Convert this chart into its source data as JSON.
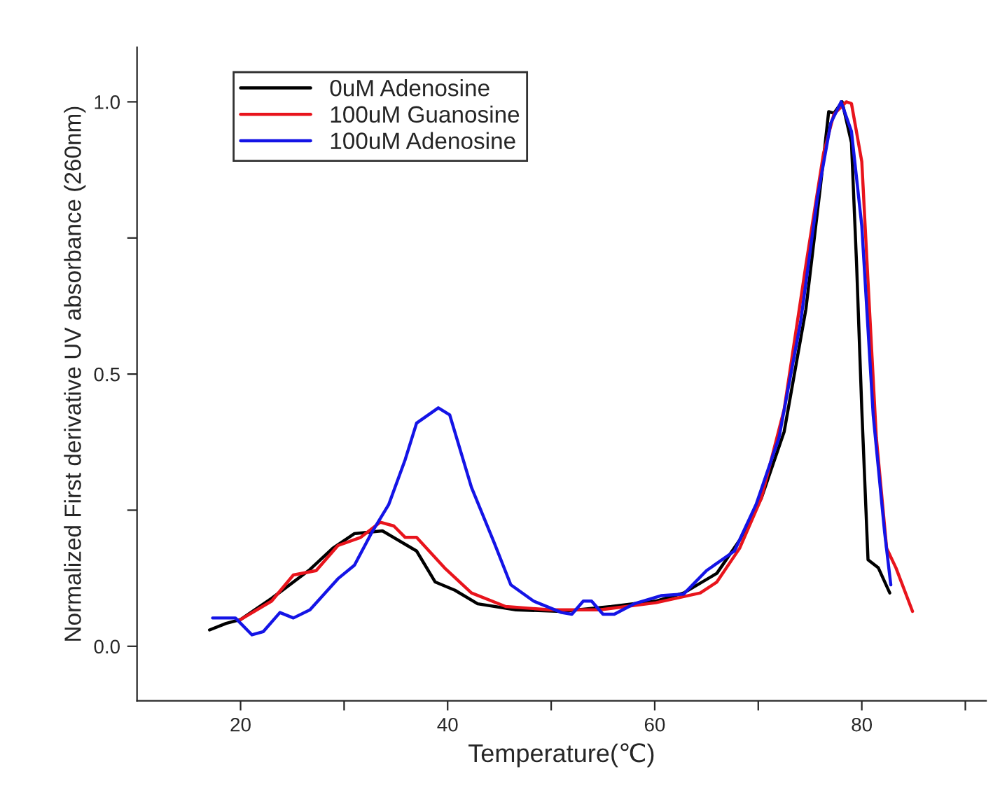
{
  "chart_data": {
    "type": "line",
    "xlabel": "Temperature(℃)",
    "ylabel": "Normalized First derivative UV absorbance (260nm)",
    "xlim": [
      10,
      92
    ],
    "ylim": [
      -0.1,
      1.1
    ],
    "xticks": [
      20,
      {
        "value": 30,
        "label": null
      },
      40,
      {
        "value": 50,
        "label": null
      },
      60,
      {
        "value": 70,
        "label": null
      },
      80,
      {
        "value": 90,
        "label": null
      }
    ],
    "yticks": [
      {
        "value": 0,
        "label": "0.0"
      },
      {
        "value": 0.25,
        "label": null
      },
      {
        "value": 0.5,
        "label": "0.5"
      },
      {
        "value": 0.75,
        "label": null
      },
      {
        "value": 1.0,
        "label": "1.0"
      }
    ],
    "grid": false,
    "legend": "top left",
    "line_style": "solid",
    "marker": "none",
    "series": [
      {
        "name": "0uM Adenosine",
        "color": "#000000",
        "x": [
          17.0,
          18.6,
          20.0,
          23.0,
          26.7,
          28.9,
          31.0,
          33.7,
          37.0,
          38.8,
          40.7,
          42.9,
          46.6,
          51.0,
          55.8,
          60.1,
          62.8,
          66.0,
          68.2,
          70.3,
          72.5,
          74.6,
          76.0,
          76.8,
          77.3,
          78.1,
          79.0,
          79.5,
          80.0,
          80.6,
          81.6,
          82.7
        ],
        "values": [
          0.03,
          0.042,
          0.049,
          0.088,
          0.141,
          0.18,
          0.207,
          0.212,
          0.175,
          0.118,
          0.103,
          0.078,
          0.067,
          0.064,
          0.073,
          0.083,
          0.098,
          0.134,
          0.195,
          0.272,
          0.394,
          0.619,
          0.844,
          0.982,
          0.979,
          1.0,
          0.925,
          0.7,
          0.435,
          0.159,
          0.144,
          0.098
        ]
      },
      {
        "name": "100uM Guanosine",
        "color": "#e8141c",
        "x": [
          20.0,
          23.0,
          25.1,
          27.3,
          29.4,
          31.6,
          33.5,
          34.8,
          35.9,
          37.0,
          39.7,
          42.3,
          45.6,
          49.9,
          54.7,
          60.1,
          64.4,
          66.0,
          68.2,
          70.3,
          72.5,
          74.6,
          76.3,
          77.3,
          78.5,
          79.0,
          80.0,
          80.6,
          81.4,
          82.4,
          83.3,
          84.9
        ],
        "values": [
          0.049,
          0.083,
          0.131,
          0.139,
          0.185,
          0.2,
          0.228,
          0.221,
          0.2,
          0.2,
          0.144,
          0.098,
          0.073,
          0.067,
          0.067,
          0.08,
          0.098,
          0.118,
          0.18,
          0.272,
          0.435,
          0.7,
          0.905,
          0.977,
          1.0,
          0.997,
          0.89,
          0.67,
          0.384,
          0.18,
          0.144,
          0.064
        ]
      },
      {
        "name": "100uM Adenosine",
        "color": "#1414e6",
        "x": [
          17.3,
          19.5,
          21.1,
          22.2,
          23.8,
          25.1,
          26.7,
          29.4,
          31.0,
          32.7,
          34.3,
          35.9,
          37.0,
          39.1,
          40.2,
          42.3,
          44.5,
          46.1,
          48.3,
          51.0,
          52.0,
          53.1,
          53.9,
          55.0,
          56.1,
          58.0,
          60.6,
          62.8,
          65.0,
          67.7,
          69.8,
          72.0,
          74.1,
          75.7,
          77.0,
          78.0,
          79.0,
          80.0,
          81.1,
          82.2,
          82.8
        ],
        "values": [
          0.052,
          0.052,
          0.021,
          0.027,
          0.062,
          0.052,
          0.067,
          0.124,
          0.149,
          0.21,
          0.26,
          0.343,
          0.41,
          0.438,
          0.425,
          0.292,
          0.19,
          0.113,
          0.083,
          0.062,
          0.059,
          0.083,
          0.083,
          0.059,
          0.059,
          0.078,
          0.093,
          0.096,
          0.139,
          0.175,
          0.261,
          0.383,
          0.597,
          0.823,
          0.961,
          1.0,
          0.946,
          0.772,
          0.425,
          0.21,
          0.113
        ]
      }
    ]
  }
}
